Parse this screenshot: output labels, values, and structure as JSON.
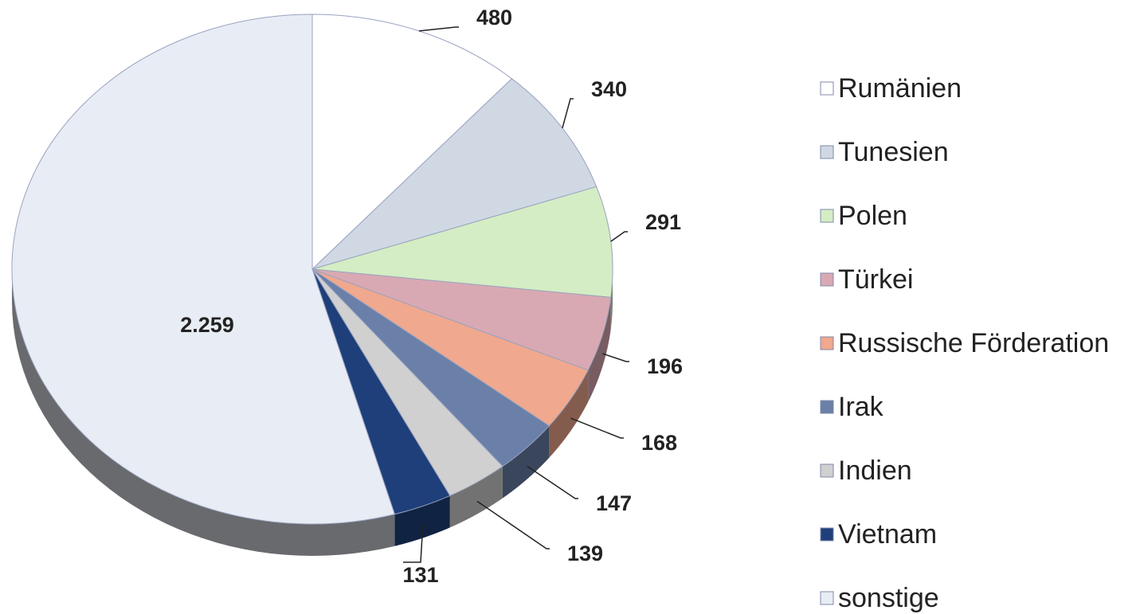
{
  "chart_data": {
    "type": "pie",
    "categories": [
      "Rumänien",
      "Tunesien",
      "Polen",
      "Türkei",
      "Russische Förderation",
      "Irak",
      "Indien",
      "Vietnam",
      "sonstige"
    ],
    "values": [
      480,
      340,
      291,
      196,
      168,
      147,
      139,
      131,
      2259
    ],
    "value_labels": [
      "480",
      "340",
      "291",
      "196",
      "168",
      "147",
      "139",
      "131",
      "2.259"
    ],
    "colors": [
      "#ffffff",
      "#d0d8e4",
      "#d4edc4",
      "#d9a9b3",
      "#f0a88e",
      "#6a80a8",
      "#d0d0d0",
      "#1f3f7a",
      "#e8ecf4"
    ],
    "legend": "right"
  }
}
